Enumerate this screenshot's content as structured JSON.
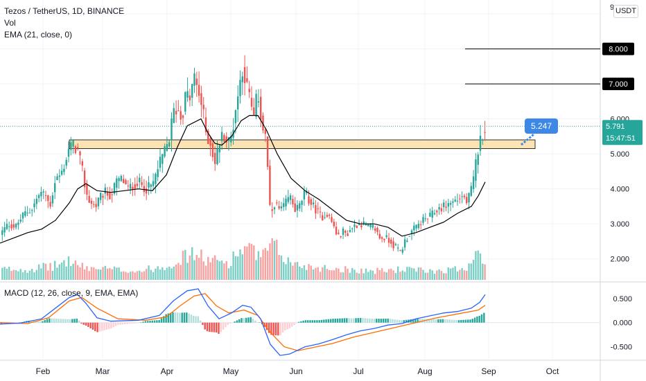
{
  "header": {
    "symbol_line": "Tezos / TetherUS, 1D, BINANCE",
    "indicator_vol": "Vol",
    "indicator_ema": "EMA (21, close, 0)",
    "macd_label": "MACD (12, 26, close, 9, EMA, EMA)",
    "unit": "USDT",
    "top_tick": "9"
  },
  "colors": {
    "up": "#26a69a",
    "down": "#ef5350",
    "ema": "#000000",
    "macd_line": "#2962ff",
    "signal_line": "#ff6d00",
    "zone_fill": "#fbe3b3",
    "price_badge": "#26a69a",
    "callout": "#3d87e6"
  },
  "chart_data": [
    {
      "type": "candlestick",
      "x_ticks": [
        "Feb",
        "Mar",
        "Apr",
        "May",
        "Jun",
        "Jul",
        "Aug",
        "Sep",
        "Oct"
      ],
      "y_ticks": [
        "2.000",
        "3.000",
        "4.000",
        "5.000",
        "6.000"
      ],
      "ylim": [
        1.4,
        9.2
      ],
      "levels": [
        {
          "label": "8.000",
          "value": 8.0
        },
        {
          "label": "7.000",
          "value": 7.0
        }
      ],
      "zone": {
        "low": 5.15,
        "high": 5.4
      },
      "annotation": {
        "label": "5.247",
        "value": 5.247
      },
      "last_price": {
        "label": "5.791",
        "value": 5.791,
        "countdown": "15:47:51"
      },
      "anchor_points": [
        [
          0,
          2.7
        ],
        [
          12,
          3.0
        ],
        [
          22,
          2.9
        ],
        [
          35,
          3.3
        ],
        [
          45,
          3.4
        ],
        [
          58,
          3.9
        ],
        [
          66,
          3.8
        ],
        [
          72,
          3.5
        ],
        [
          80,
          4.3
        ],
        [
          88,
          4.4
        ],
        [
          96,
          4.9
        ],
        [
          100,
          5.2
        ],
        [
          106,
          5.25
        ],
        [
          112,
          5.1
        ],
        [
          118,
          4.6
        ],
        [
          124,
          3.9
        ],
        [
          130,
          3.6
        ],
        [
          138,
          3.5
        ],
        [
          146,
          3.8
        ],
        [
          152,
          3.9
        ],
        [
          160,
          3.8
        ],
        [
          168,
          4.2
        ],
        [
          176,
          4.3
        ],
        [
          184,
          4.0
        ],
        [
          192,
          4.1
        ],
        [
          200,
          4.2
        ],
        [
          210,
          4.0
        ],
        [
          220,
          4.1
        ],
        [
          228,
          4.6
        ],
        [
          236,
          5.0
        ],
        [
          244,
          5.4
        ],
        [
          250,
          6.2
        ],
        [
          256,
          6.3
        ],
        [
          262,
          6.0
        ],
        [
          268,
          6.7
        ],
        [
          274,
          6.6
        ],
        [
          280,
          7.2
        ],
        [
          286,
          6.8
        ],
        [
          292,
          6.3
        ],
        [
          298,
          5.5
        ],
        [
          304,
          5.3
        ],
        [
          310,
          4.7
        ],
        [
          316,
          5.3
        ],
        [
          322,
          5.6
        ],
        [
          328,
          5.3
        ],
        [
          334,
          5.5
        ],
        [
          340,
          6.3
        ],
        [
          346,
          7.0
        ],
        [
          350,
          7.5
        ],
        [
          355,
          7.0
        ],
        [
          360,
          6.6
        ],
        [
          366,
          6.0
        ],
        [
          372,
          6.8
        ],
        [
          378,
          5.8
        ],
        [
          384,
          5.4
        ],
        [
          387,
          4.3
        ],
        [
          390,
          3.2
        ],
        [
          396,
          3.6
        ],
        [
          402,
          3.4
        ],
        [
          410,
          3.5
        ],
        [
          418,
          3.8
        ],
        [
          426,
          3.4
        ],
        [
          432,
          3.5
        ],
        [
          440,
          3.9
        ],
        [
          448,
          3.6
        ],
        [
          456,
          3.4
        ],
        [
          464,
          3.2
        ],
        [
          472,
          3.3
        ],
        [
          480,
          3.0
        ],
        [
          488,
          2.6
        ],
        [
          494,
          2.8
        ],
        [
          500,
          2.7
        ],
        [
          508,
          2.9
        ],
        [
          516,
          3.0
        ],
        [
          524,
          3.0
        ],
        [
          532,
          2.9
        ],
        [
          540,
          2.9
        ],
        [
          548,
          2.6
        ],
        [
          556,
          2.6
        ],
        [
          564,
          2.5
        ],
        [
          572,
          2.3
        ],
        [
          578,
          2.2
        ],
        [
          584,
          2.5
        ],
        [
          590,
          2.7
        ],
        [
          600,
          2.9
        ],
        [
          610,
          3.1
        ],
        [
          620,
          3.2
        ],
        [
          630,
          3.4
        ],
        [
          640,
          3.5
        ],
        [
          650,
          3.6
        ],
        [
          660,
          3.7
        ],
        [
          668,
          3.8
        ],
        [
          674,
          3.6
        ],
        [
          680,
          4.0
        ],
        [
          684,
          4.3
        ],
        [
          688,
          5.0
        ],
        [
          692,
          5.3
        ],
        [
          696,
          5.6
        ],
        [
          700,
          5.79
        ]
      ],
      "ema_points": [
        [
          0,
          2.45
        ],
        [
          20,
          2.6
        ],
        [
          40,
          2.75
        ],
        [
          60,
          2.85
        ],
        [
          80,
          3.1
        ],
        [
          100,
          3.6
        ],
        [
          112,
          4.0
        ],
        [
          124,
          4.15
        ],
        [
          140,
          3.95
        ],
        [
          160,
          3.9
        ],
        [
          180,
          3.95
        ],
        [
          200,
          4.0
        ],
        [
          220,
          3.95
        ],
        [
          240,
          4.4
        ],
        [
          256,
          5.2
        ],
        [
          270,
          5.8
        ],
        [
          290,
          6.0
        ],
        [
          300,
          5.6
        ],
        [
          310,
          5.3
        ],
        [
          320,
          5.25
        ],
        [
          334,
          5.5
        ],
        [
          348,
          5.95
        ],
        [
          360,
          6.1
        ],
        [
          372,
          6.1
        ],
        [
          384,
          5.7
        ],
        [
          400,
          5.0
        ],
        [
          420,
          4.3
        ],
        [
          440,
          3.95
        ],
        [
          460,
          3.7
        ],
        [
          480,
          3.4
        ],
        [
          500,
          3.1
        ],
        [
          520,
          3.0
        ],
        [
          540,
          3.0
        ],
        [
          560,
          2.9
        ],
        [
          580,
          2.65
        ],
        [
          600,
          2.75
        ],
        [
          620,
          2.9
        ],
        [
          640,
          3.05
        ],
        [
          660,
          3.3
        ],
        [
          680,
          3.5
        ],
        [
          690,
          3.8
        ],
        [
          700,
          4.2
        ]
      ],
      "volume_points": [
        [
          0,
          0.3
        ],
        [
          40,
          0.3
        ],
        [
          80,
          0.4
        ],
        [
          100,
          0.55
        ],
        [
          120,
          0.35
        ],
        [
          160,
          0.3
        ],
        [
          200,
          0.25
        ],
        [
          240,
          0.4
        ],
        [
          260,
          0.6
        ],
        [
          280,
          0.75
        ],
        [
          300,
          0.55
        ],
        [
          330,
          0.5
        ],
        [
          350,
          0.9
        ],
        [
          380,
          0.65
        ],
        [
          392,
          1.0
        ],
        [
          420,
          0.45
        ],
        [
          460,
          0.35
        ],
        [
          500,
          0.3
        ],
        [
          540,
          0.25
        ],
        [
          580,
          0.3
        ],
        [
          620,
          0.25
        ],
        [
          660,
          0.3
        ],
        [
          680,
          0.45
        ],
        [
          686,
          1.0
        ],
        [
          692,
          0.85
        ],
        [
          700,
          0.5
        ]
      ]
    },
    {
      "type": "macd",
      "y_ticks": [
        "0.500",
        "0.000",
        "-0.500"
      ],
      "ylim": [
        -0.75,
        0.8
      ],
      "series": [
        {
          "key": "macd",
          "points": [
            [
              0,
              -0.03
            ],
            [
              30,
              -0.01
            ],
            [
              60,
              0.08
            ],
            [
              80,
              0.3
            ],
            [
              100,
              0.52
            ],
            [
              112,
              0.58
            ],
            [
              124,
              0.4
            ],
            [
              140,
              0.1
            ],
            [
              160,
              0.03
            ],
            [
              200,
              0.05
            ],
            [
              230,
              0.15
            ],
            [
              250,
              0.45
            ],
            [
              270,
              0.66
            ],
            [
              286,
              0.7
            ],
            [
              300,
              0.35
            ],
            [
              316,
              0.08
            ],
            [
              334,
              0.2
            ],
            [
              350,
              0.36
            ],
            [
              362,
              0.32
            ],
            [
              376,
              0.08
            ],
            [
              390,
              -0.45
            ],
            [
              404,
              -0.68
            ],
            [
              418,
              -0.65
            ],
            [
              440,
              -0.5
            ],
            [
              460,
              -0.44
            ],
            [
              480,
              -0.35
            ],
            [
              500,
              -0.25
            ],
            [
              520,
              -0.17
            ],
            [
              540,
              -0.12
            ],
            [
              560,
              -0.05
            ],
            [
              580,
              -0.02
            ],
            [
              600,
              0.08
            ],
            [
              620,
              0.14
            ],
            [
              640,
              0.2
            ],
            [
              660,
              0.23
            ],
            [
              680,
              0.3
            ],
            [
              692,
              0.42
            ],
            [
              700,
              0.58
            ]
          ]
        },
        {
          "key": "signal",
          "points": [
            [
              0,
              0.0
            ],
            [
              40,
              -0.02
            ],
            [
              70,
              0.1
            ],
            [
              100,
              0.45
            ],
            [
              118,
              0.52
            ],
            [
              140,
              0.3
            ],
            [
              170,
              0.08
            ],
            [
              210,
              0.05
            ],
            [
              240,
              0.12
            ],
            [
              260,
              0.35
            ],
            [
              280,
              0.55
            ],
            [
              296,
              0.6
            ],
            [
              312,
              0.35
            ],
            [
              330,
              0.2
            ],
            [
              352,
              0.26
            ],
            [
              372,
              0.15
            ],
            [
              390,
              -0.2
            ],
            [
              410,
              -0.5
            ],
            [
              430,
              -0.58
            ],
            [
              450,
              -0.52
            ],
            [
              480,
              -0.43
            ],
            [
              510,
              -0.3
            ],
            [
              540,
              -0.2
            ],
            [
              570,
              -0.1
            ],
            [
              600,
              0.0
            ],
            [
              630,
              0.1
            ],
            [
              660,
              0.18
            ],
            [
              690,
              0.26
            ],
            [
              700,
              0.36
            ]
          ]
        }
      ]
    }
  ]
}
